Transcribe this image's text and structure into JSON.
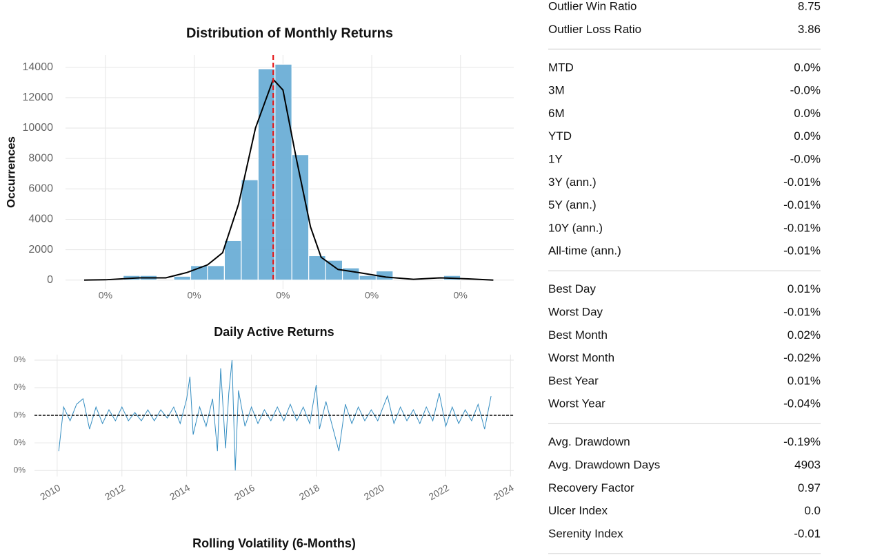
{
  "chart_data": [
    {
      "type": "histogram",
      "title": "Distribution of Monthly Returns",
      "ylabel": "Occurrences",
      "bins": [
        -0.018,
        -0.0161,
        -0.0142,
        -0.0123,
        -0.0104,
        -0.0085,
        -0.0066,
        -0.0047,
        -0.0028,
        -0.0009,
        0.001,
        0.0029,
        0.0048,
        0.0067,
        0.0086,
        0.0105,
        0.0124,
        0.0143,
        0.0162,
        0.0181,
        0.02
      ],
      "values": [
        300,
        300,
        0,
        250,
        950,
        950,
        2600,
        6600,
        13900,
        14200,
        8250,
        1600,
        1300,
        800,
        300,
        600,
        0,
        0,
        0,
        300
      ],
      "color": "#6baed6",
      "kde": {
        "x": [
          -0.0224,
          -0.02,
          -0.0162,
          -0.0132,
          -0.0108,
          -0.0085,
          -0.0068,
          -0.005,
          -0.0031,
          -0.0011,
          0,
          0.0015,
          0.0031,
          0.0043,
          0.0062,
          0.0085,
          0.0116,
          0.0147,
          0.0178,
          0.0209,
          0.0237
        ],
        "y": [
          0,
          20,
          150,
          150,
          500,
          1000,
          1800,
          5000,
          10000,
          13200,
          12500,
          8000,
          3500,
          1500,
          700,
          500,
          200,
          50,
          150,
          80,
          0
        ],
        "color": "#000000"
      },
      "mean": -0.0011,
      "mean_color": "#e41a1c",
      "xlim": [
        -0.0245,
        0.026
      ],
      "xticks": [
        {
          "value": -0.02,
          "label": "0%"
        },
        {
          "value": -0.01,
          "label": "0%"
        },
        {
          "value": 0,
          "label": "0%"
        },
        {
          "value": 0.01,
          "label": "0%"
        },
        {
          "value": 0.02,
          "label": "0%"
        }
      ],
      "ylim": [
        -600,
        14800
      ],
      "yticks": [
        0,
        2000,
        4000,
        6000,
        8000,
        10000,
        12000,
        14000
      ],
      "grid": true
    },
    {
      "type": "line",
      "title": "Daily Active Returns",
      "color": "#348dc1",
      "x": [
        2010.05,
        2010.2,
        2010.4,
        2010.6,
        2010.8,
        2011.0,
        2011.2,
        2011.4,
        2011.6,
        2011.8,
        2012.0,
        2012.2,
        2012.4,
        2012.6,
        2012.8,
        2013.0,
        2013.2,
        2013.4,
        2013.6,
        2013.8,
        2014.0,
        2014.1,
        2014.2,
        2014.4,
        2014.6,
        2014.8,
        2014.95,
        2015.05,
        2015.2,
        2015.3,
        2015.4,
        2015.5,
        2015.6,
        2015.8,
        2016.0,
        2016.2,
        2016.4,
        2016.6,
        2016.8,
        2017.0,
        2017.2,
        2017.4,
        2017.6,
        2017.8,
        2018.0,
        2018.1,
        2018.3,
        2018.5,
        2018.7,
        2018.9,
        2019.1,
        2019.3,
        2019.5,
        2019.7,
        2019.9,
        2020.2,
        2020.4,
        2020.6,
        2020.8,
        2021.0,
        2021.2,
        2021.4,
        2021.6,
        2021.8,
        2022.0,
        2022.2,
        2022.4,
        2022.6,
        2022.8,
        2023.0,
        2023.2,
        2023.4
      ],
      "values": [
        -0.00013,
        3e-05,
        -2e-05,
        4e-05,
        6e-05,
        -5e-05,
        3e-05,
        -3e-05,
        2e-05,
        -2e-05,
        3e-05,
        -2e-05,
        1e-05,
        -2e-05,
        2e-05,
        -2e-05,
        2e-05,
        -1e-05,
        3e-05,
        -3e-05,
        6e-05,
        0.00014,
        -7e-05,
        3e-05,
        -4e-05,
        6e-05,
        -0.00013,
        0.00017,
        -0.00012,
        8e-05,
        0.0002,
        -0.0002,
        9e-05,
        -4e-05,
        3e-05,
        -3e-05,
        2e-05,
        -2e-05,
        3e-05,
        -2e-05,
        4e-05,
        -2e-05,
        3e-05,
        -3e-05,
        0.00011,
        -5e-05,
        5e-05,
        -4e-05,
        -0.00013,
        4e-05,
        -3e-05,
        3e-05,
        -2e-05,
        2e-05,
        -2e-05,
        7e-05,
        -3e-05,
        3e-05,
        -2e-05,
        2e-05,
        -3e-05,
        3e-05,
        -2e-05,
        8e-05,
        -4e-05,
        3e-05,
        -3e-05,
        2e-05,
        -2e-05,
        4e-05,
        -5e-05,
        7e-05
      ],
      "xlim": [
        2009.3,
        2024.1
      ],
      "xticks": [
        2010,
        2012,
        2014,
        2016,
        2018,
        2020,
        2022,
        2024
      ],
      "ylim": [
        -0.000222,
        0.00022
      ],
      "yticks": [
        {
          "value": 0.0002,
          "label": "0%"
        },
        {
          "value": 0.0001,
          "label": "0%"
        },
        {
          "value": 0,
          "label": "0%"
        },
        {
          "value": -0.0001,
          "label": "0%"
        },
        {
          "value": -0.0002,
          "label": "0%"
        }
      ],
      "grid": true
    },
    {
      "type": "line",
      "title": "Rolling Volatility (6-Months)"
    }
  ],
  "metrics": [
    [
      [
        "Outlier Win Ratio",
        "8.75"
      ],
      [
        "Outlier Loss Ratio",
        "3.86"
      ]
    ],
    [
      [
        "MTD",
        "0.0%"
      ],
      [
        "3M",
        "-0.0%"
      ],
      [
        "6M",
        "0.0%"
      ],
      [
        "YTD",
        "0.0%"
      ],
      [
        "1Y",
        "-0.0%"
      ],
      [
        "3Y (ann.)",
        "-0.01%"
      ],
      [
        "5Y (ann.)",
        "-0.01%"
      ],
      [
        "10Y (ann.)",
        "-0.01%"
      ],
      [
        "All-time (ann.)",
        "-0.01%"
      ]
    ],
    [
      [
        "Best Day",
        "0.01%"
      ],
      [
        "Worst Day",
        "-0.01%"
      ],
      [
        "Best Month",
        "0.02%"
      ],
      [
        "Worst Month",
        "-0.02%"
      ],
      [
        "Best Year",
        "0.01%"
      ],
      [
        "Worst Year",
        "-0.04%"
      ]
    ],
    [
      [
        "Avg. Drawdown",
        "-0.19%"
      ],
      [
        "Avg. Drawdown Days",
        "4903"
      ],
      [
        "Recovery Factor",
        "0.97"
      ],
      [
        "Ulcer Index",
        "0.0"
      ],
      [
        "Serenity Index",
        "-0.01"
      ]
    ]
  ]
}
